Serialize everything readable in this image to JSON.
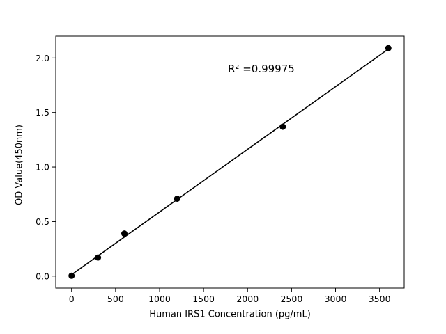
{
  "chart_data": {
    "type": "scatter",
    "title": "",
    "xlabel": "Human IRS1 Concentration (pg/mL)",
    "ylabel": "OD Value(450nm)",
    "annotation": "R² =0.99975",
    "r_squared": 0.99975,
    "xlim": [
      -180,
      3780
    ],
    "ylim": [
      -0.11,
      2.2
    ],
    "x_ticks": {
      "values": [
        0,
        500,
        1000,
        1500,
        2000,
        2500,
        3000,
        3500
      ],
      "labels": [
        "0",
        "500",
        "1000",
        "1500",
        "2000",
        "2500",
        "3000",
        "3500"
      ]
    },
    "y_ticks": {
      "values": [
        0,
        0.5,
        1.0,
        1.5,
        2.0
      ],
      "labels": [
        "0.0",
        "0.5",
        "1.0",
        "1.5",
        "2.0"
      ]
    },
    "points": [
      [
        0,
        0.003
      ],
      [
        300,
        0.17
      ],
      [
        600,
        0.39
      ],
      [
        1200,
        0.71
      ],
      [
        2400,
        1.37
      ],
      [
        3600,
        2.09
      ]
    ],
    "fit_line": [
      [
        0,
        0.013
      ],
      [
        3600,
        2.082
      ]
    ],
    "marker_color": "#000000",
    "line_color": "#000000",
    "background": "#ffffff",
    "grid": false,
    "legend": null
  }
}
